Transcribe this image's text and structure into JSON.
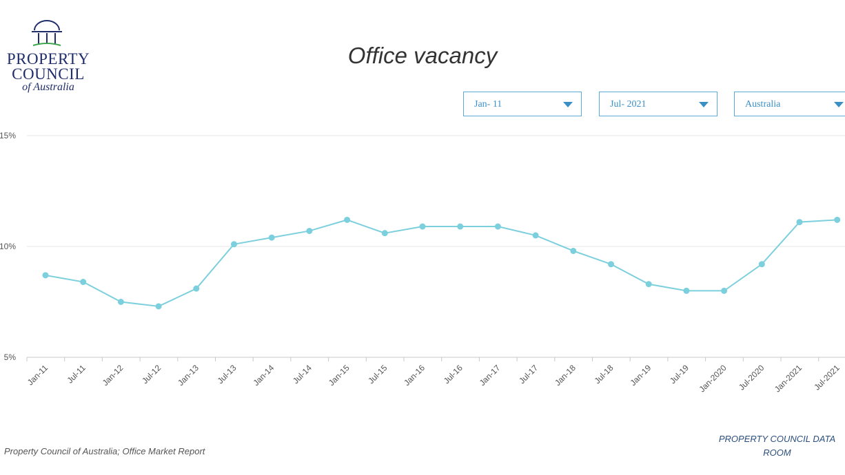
{
  "logo": {
    "line1": "PROPERTY",
    "line2": "COUNCIL",
    "line3": "of Australia",
    "icon": "building-columns-icon",
    "color": "#1f2d6b",
    "accent": "#3aa548"
  },
  "header": {
    "title": "Office vacancy"
  },
  "filters": {
    "start": "Jan- 11",
    "end": "Jul- 2021",
    "region": "Australia",
    "caret_icon": "chevron-down-icon",
    "accent": "#3a8fc5"
  },
  "footer": {
    "source": "Property Council of Australia; Office Market Report",
    "dataroom_line1": "PROPERTY COUNCIL DATA",
    "dataroom_line2": "ROOM"
  },
  "chart_data": {
    "type": "line",
    "categories": [
      "Jan-11",
      "Jul-11",
      "Jan-12",
      "Jul-12",
      "Jan-13",
      "Jul-13",
      "Jan-14",
      "Jul-14",
      "Jan-15",
      "Jul-15",
      "Jan-16",
      "Jul-16",
      "Jan-17",
      "Jul-17",
      "Jan-18",
      "Jul-18",
      "Jan-19",
      "Jul-19",
      "Jan-2020",
      "Jul-2020",
      "Jan-2021",
      "Jul-2021"
    ],
    "series": [
      {
        "values": [
          8.7,
          8.4,
          7.5,
          7.3,
          8.1,
          10.1,
          10.4,
          10.7,
          11.2,
          10.6,
          10.9,
          10.9,
          10.9,
          10.5,
          9.8,
          9.2,
          8.3,
          8.0,
          8.0,
          9.2,
          11.1,
          11.2
        ],
        "color": "#7ccfdc"
      }
    ],
    "yticks": [
      "5%",
      "10%",
      "15%"
    ],
    "ylim": [
      5,
      15
    ],
    "grid": true,
    "xlabel": "",
    "ylabel": ""
  }
}
